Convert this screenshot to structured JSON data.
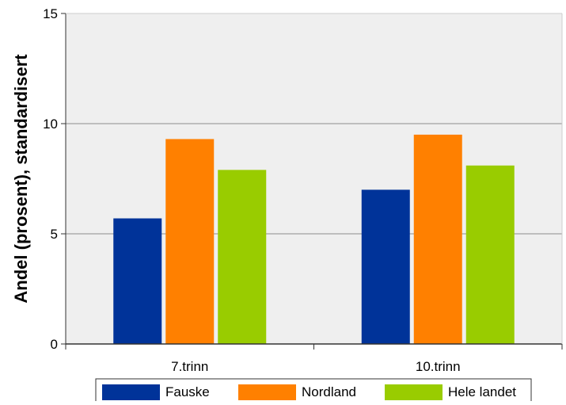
{
  "chart_data": {
    "type": "bar",
    "title": "",
    "ylabel": "Andel (prosent), standardisert",
    "xlabel": "",
    "categories": [
      "7.trinn",
      "10.trinn"
    ],
    "series": [
      {
        "name": "Fauske",
        "values": [
          5.7,
          7.0
        ],
        "color": "#003399"
      },
      {
        "name": "Nordland",
        "values": [
          9.3,
          9.5
        ],
        "color": "#ff8000"
      },
      {
        "name": "Hele landet",
        "values": [
          7.9,
          8.1
        ],
        "color": "#99cc00"
      }
    ],
    "ylim": [
      0,
      15
    ],
    "yticks": [
      0,
      5,
      10,
      15
    ],
    "grid": true,
    "legend_position": "bottom",
    "plot_background": "#efefef"
  }
}
